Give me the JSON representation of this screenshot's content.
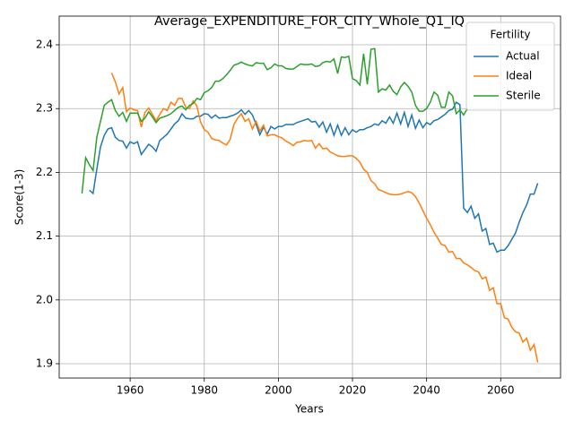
{
  "chart_data": {
    "type": "line",
    "title": "Average_EXPENDITURE_FOR_CITY_Whole_Q1_IQ",
    "x_label": "Years",
    "y_label": "Score(1-3)",
    "x": [
      1947,
      1948,
      1949,
      1950,
      1951,
      1952,
      1953,
      1954,
      1955,
      1956,
      1957,
      1958,
      1959,
      1960,
      1961,
      1962,
      1963,
      1964,
      1965,
      1966,
      1967,
      1968,
      1969,
      1970,
      1971,
      1972,
      1973,
      1974,
      1975,
      1976,
      1977,
      1978,
      1979,
      1980,
      1981,
      1982,
      1983,
      1984,
      1985,
      1986,
      1987,
      1988,
      1989,
      1990,
      1991,
      1992,
      1993,
      1994,
      1995,
      1996,
      1997,
      1998,
      1999,
      2000,
      2001,
      2002,
      2003,
      2004,
      2005,
      2006,
      2007,
      2008,
      2009,
      2010,
      2011,
      2012,
      2013,
      2014,
      2015,
      2016,
      2017,
      2018,
      2019,
      2020,
      2021,
      2022,
      2023,
      2024,
      2025,
      2026,
      2027,
      2028,
      2029,
      2030,
      2031,
      2032,
      2033,
      2034,
      2035,
      2036,
      2037,
      2038,
      2039,
      2040,
      2041,
      2042,
      2043,
      2044,
      2045,
      2046,
      2047,
      2048,
      2049,
      2050,
      2051,
      2052,
      2053,
      2054,
      2055,
      2056,
      2057,
      2058,
      2059,
      2060,
      2061,
      2062,
      2063,
      2064,
      2065,
      2066,
      2067,
      2068,
      2069,
      2070
    ],
    "series": [
      {
        "name": "Actual",
        "color": "#1f77b4",
        "values": [
          null,
          null,
          2.172,
          2.167,
          2.205,
          2.24,
          2.258,
          2.268,
          2.27,
          2.255,
          2.25,
          2.249,
          2.238,
          2.248,
          2.245,
          2.248,
          2.228,
          2.236,
          2.244,
          2.24,
          2.233,
          2.25,
          2.255,
          2.26,
          2.268,
          2.276,
          2.281,
          2.292,
          2.285,
          2.284,
          2.284,
          2.288,
          2.288,
          2.292,
          2.291,
          2.285,
          2.29,
          2.285,
          2.286,
          2.286,
          2.288,
          2.29,
          2.293,
          2.298,
          2.291,
          2.297,
          2.29,
          2.275,
          2.259,
          2.271,
          2.26,
          2.272,
          2.268,
          2.272,
          2.272,
          2.275,
          2.275,
          2.275,
          2.278,
          2.28,
          2.282,
          2.284,
          2.279,
          2.28,
          2.271,
          2.279,
          2.263,
          2.276,
          2.258,
          2.274,
          2.258,
          2.27,
          2.259,
          2.267,
          2.263,
          2.267,
          2.267,
          2.27,
          2.272,
          2.276,
          2.274,
          2.281,
          2.277,
          2.287,
          2.277,
          2.293,
          2.276,
          2.294,
          2.272,
          2.29,
          2.269,
          2.282,
          2.27,
          2.278,
          2.275,
          2.281,
          2.283,
          2.287,
          2.291,
          2.297,
          2.299,
          2.31,
          2.306,
          2.144,
          2.137,
          2.147,
          2.128,
          2.135,
          2.108,
          2.112,
          2.087,
          2.089,
          2.075,
          2.078,
          2.078,
          2.085,
          2.095,
          2.105,
          2.122,
          2.137,
          2.149,
          2.166,
          2.166,
          2.183
        ]
      },
      {
        "name": "Ideal",
        "color": "#ff7f0e",
        "values": [
          null,
          null,
          null,
          null,
          null,
          null,
          null,
          null,
          2.356,
          2.342,
          2.323,
          2.333,
          2.295,
          2.301,
          2.298,
          2.297,
          2.271,
          2.294,
          2.301,
          2.291,
          2.281,
          2.291,
          2.3,
          2.297,
          2.31,
          2.305,
          2.316,
          2.316,
          2.302,
          2.3,
          2.312,
          2.304,
          2.279,
          2.267,
          2.263,
          2.253,
          2.251,
          2.25,
          2.246,
          2.243,
          2.252,
          2.275,
          2.285,
          2.292,
          2.28,
          2.284,
          2.268,
          2.28,
          2.265,
          2.274,
          2.257,
          2.259,
          2.259,
          2.256,
          2.254,
          2.249,
          2.246,
          2.242,
          2.247,
          2.248,
          2.25,
          2.249,
          2.25,
          2.238,
          2.245,
          2.237,
          2.238,
          2.232,
          2.229,
          2.226,
          2.225,
          2.225,
          2.226,
          2.226,
          2.222,
          2.216,
          2.205,
          2.2,
          2.187,
          2.182,
          2.173,
          2.171,
          2.168,
          2.166,
          2.165,
          2.165,
          2.166,
          2.168,
          2.17,
          2.168,
          2.162,
          2.152,
          2.14,
          2.128,
          2.118,
          2.106,
          2.097,
          2.087,
          2.085,
          2.075,
          2.076,
          2.065,
          2.065,
          2.058,
          2.055,
          2.051,
          2.046,
          2.044,
          2.033,
          2.036,
          2.015,
          2.019,
          1.994,
          1.994,
          1.972,
          1.97,
          1.957,
          1.95,
          1.948,
          1.934,
          1.94,
          1.921,
          1.93,
          1.902
        ]
      },
      {
        "name": "Sterile",
        "color": "#2ca02c",
        "values": [
          2.167,
          2.223,
          2.212,
          2.203,
          2.255,
          2.28,
          2.305,
          2.31,
          2.314,
          2.297,
          2.288,
          2.294,
          2.28,
          2.293,
          2.293,
          2.293,
          2.28,
          2.285,
          2.295,
          2.287,
          2.278,
          2.285,
          2.287,
          2.289,
          2.292,
          2.297,
          2.302,
          2.304,
          2.298,
          2.305,
          2.308,
          2.316,
          2.314,
          2.325,
          2.328,
          2.333,
          2.343,
          2.343,
          2.347,
          2.353,
          2.36,
          2.368,
          2.37,
          2.373,
          2.37,
          2.368,
          2.367,
          2.372,
          2.371,
          2.371,
          2.361,
          2.364,
          2.37,
          2.367,
          2.367,
          2.363,
          2.362,
          2.362,
          2.366,
          2.37,
          2.369,
          2.369,
          2.37,
          2.366,
          2.367,
          2.372,
          2.374,
          2.373,
          2.378,
          2.355,
          2.381,
          2.38,
          2.382,
          2.347,
          2.344,
          2.337,
          2.386,
          2.338,
          2.393,
          2.394,
          2.326,
          2.331,
          2.329,
          2.337,
          2.327,
          2.322,
          2.334,
          2.341,
          2.335,
          2.326,
          2.305,
          2.296,
          2.296,
          2.3,
          2.31,
          2.326,
          2.321,
          2.302,
          2.302,
          2.326,
          2.32,
          2.292,
          2.298,
          2.29,
          2.3,
          null,
          null,
          null,
          null,
          null,
          null,
          null,
          null,
          null,
          null,
          null,
          null,
          null,
          null,
          null,
          null,
          null,
          null,
          null
        ]
      }
    ],
    "xlim": [
      1940.85,
      2076.15
    ],
    "xticks": [
      1960,
      1980,
      2000,
      2020,
      2040,
      2060
    ],
    "ylim": [
      1.8775,
      2.445
    ],
    "yticks": [
      1.9,
      {
        "value": 2,
        "label": "2.0"
      },
      2.1,
      2.2,
      2.3,
      2.4
    ],
    "grid": true,
    "legend_title": "Fertility",
    "legend_loc": "upper right"
  }
}
